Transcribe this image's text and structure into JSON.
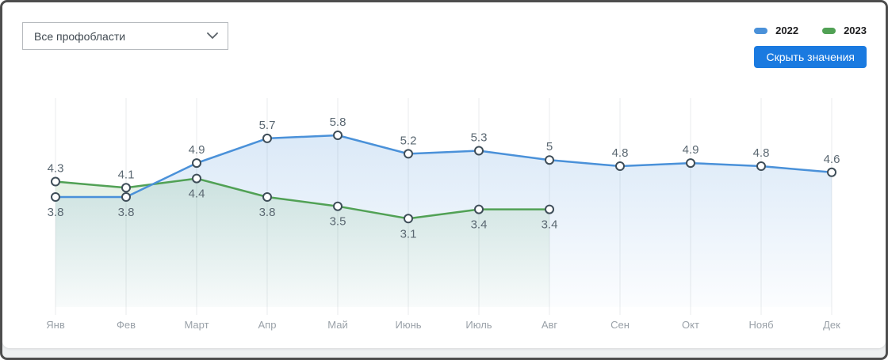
{
  "window": {
    "border_color": "#4d4d4d",
    "card_background": "#ffffff",
    "footer_strip_color": "#eef0f1"
  },
  "filters": {
    "profession_dropdown": {
      "value": "Все профобласти",
      "chevron_icon": "chevron-down"
    }
  },
  "toolbar": {
    "hide_values_button": "Скрыть значения",
    "button_color": "#1a7ae0",
    "button_text_color": "#ffffff"
  },
  "chart_data": {
    "type": "line",
    "title": "",
    "xlabel": "",
    "ylabel": "",
    "categories": [
      "Янв",
      "Фев",
      "Март",
      "Апр",
      "Май",
      "Июнь",
      "Июль",
      "Авг",
      "Сен",
      "Окт",
      "Нояб",
      "Дек"
    ],
    "series": [
      {
        "name": "2022",
        "color": "#4a91d9",
        "values": [
          3.8,
          3.8,
          4.9,
          5.7,
          5.8,
          5.2,
          5.3,
          5,
          4.8,
          4.9,
          4.8,
          4.6
        ]
      },
      {
        "name": "2023",
        "color": "#51a155",
        "values": [
          4.3,
          4.1,
          4.4,
          3.8,
          3.5,
          3.1,
          3.4,
          3.4
        ]
      }
    ],
    "value_labels_visible": true,
    "value_label_color": "#5b6872",
    "axis_label_color": "#9aa1a8",
    "marker": {
      "fill": "#ffffff",
      "stroke": "#3e4d58"
    },
    "grid": {
      "vertical": true,
      "horizontal": false,
      "color": "#e9ebec"
    },
    "legend_position": "top-right",
    "ylim": [
      0,
      7
    ]
  }
}
